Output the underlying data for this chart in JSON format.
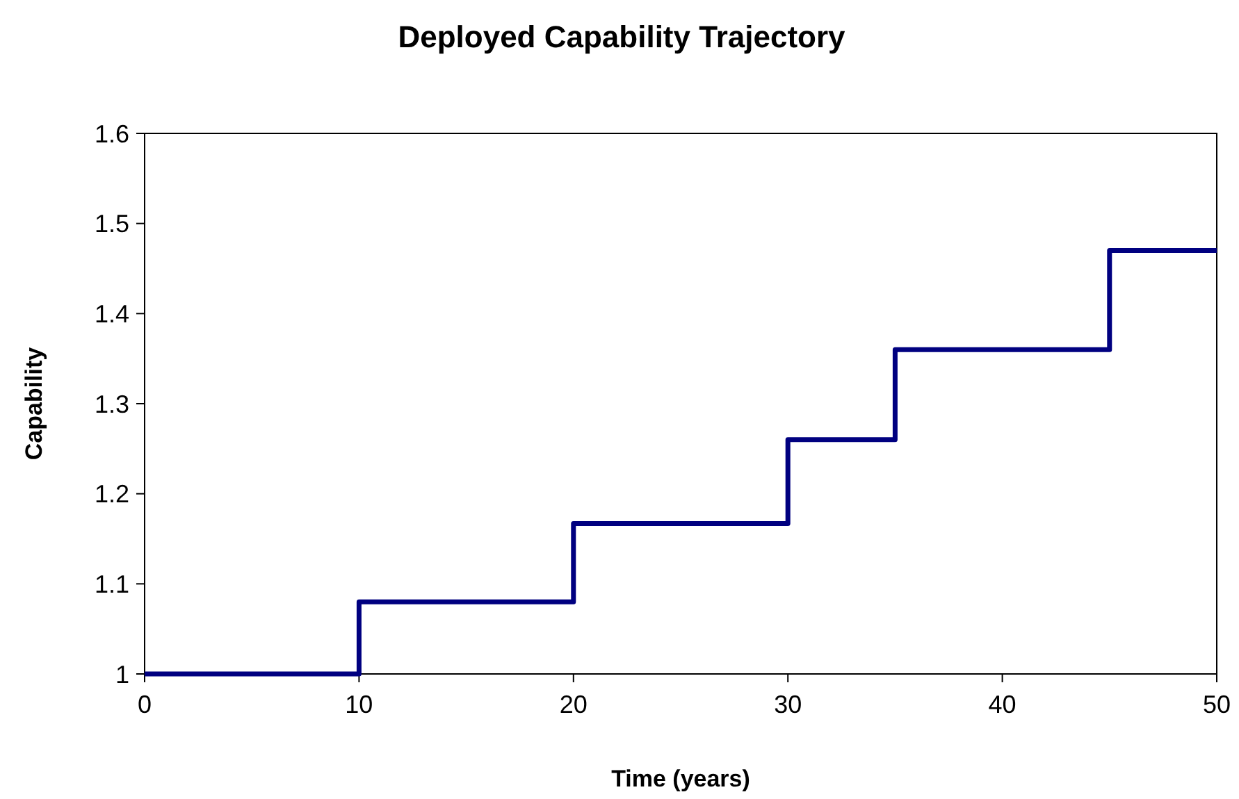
{
  "chart_data": {
    "type": "step",
    "title": "Deployed Capability Trajectory",
    "xlabel": "Time (years)",
    "ylabel": "Capability",
    "x": [
      0,
      10,
      20,
      30,
      35,
      45,
      50
    ],
    "series": [
      {
        "color": "#000080",
        "values": [
          1,
          1.08,
          1.167,
          1.26,
          1.36,
          1.47,
          1.47
        ]
      }
    ],
    "xlim": [
      0,
      50
    ],
    "xticks": [
      0,
      10,
      20,
      30,
      40,
      50
    ],
    "ylim": [
      1,
      1.6
    ],
    "yticks": [
      1,
      1.1,
      1.2,
      1.3,
      1.4,
      1.5,
      1.6
    ],
    "grid": false,
    "line_style": "solid"
  }
}
